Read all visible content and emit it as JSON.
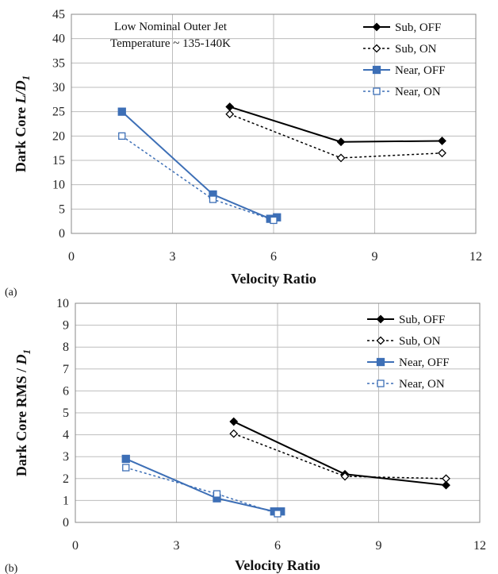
{
  "chart_data": [
    {
      "type": "line",
      "panel_label": "(a)",
      "annotation": [
        "Low Nominal Outer Jet",
        "Temperature ~ 135-140K"
      ],
      "xlabel": "Velocity Ratio",
      "ylabel_main": "Dark Core ",
      "ylabel_italic": "L/D",
      "ylabel_sub": "1",
      "xlim": [
        0,
        12
      ],
      "ylim": [
        0,
        45
      ],
      "xticks": [
        0,
        3,
        6,
        9,
        12
      ],
      "yticks": [
        0,
        5,
        10,
        15,
        20,
        25,
        30,
        35,
        40,
        45
      ],
      "grid": true,
      "legend_position": "top-right",
      "series": [
        {
          "name": "Sub, OFF",
          "color": "#000000",
          "dash": false,
          "marker": "diamond-filled",
          "x": [
            4.7,
            8.0,
            11.0
          ],
          "y": [
            26.0,
            18.8,
            19.0
          ]
        },
        {
          "name": "Sub, ON",
          "color": "#000000",
          "dash": true,
          "marker": "diamond-open",
          "x": [
            4.7,
            8.0,
            11.0
          ],
          "y": [
            24.5,
            15.5,
            16.5
          ]
        },
        {
          "name": "Near, OFF",
          "color": "#3d6fb6",
          "dash": false,
          "marker": "square-filled",
          "x": [
            1.5,
            4.2,
            5.9,
            6.1
          ],
          "y": [
            25.0,
            8.0,
            3.0,
            3.3
          ]
        },
        {
          "name": "Near, ON",
          "color": "#3d6fb6",
          "dash": true,
          "marker": "square-open",
          "x": [
            1.5,
            4.2,
            6.0
          ],
          "y": [
            20.0,
            7.0,
            2.7
          ]
        }
      ]
    },
    {
      "type": "line",
      "panel_label": "(b)",
      "xlabel": "Velocity Ratio",
      "ylabel_main": "Dark Core ",
      "ylabel_upright": "RMS / ",
      "ylabel_italic": "D",
      "ylabel_sub": "1",
      "xlim": [
        0,
        12
      ],
      "ylim": [
        0,
        10
      ],
      "xticks": [
        0,
        3,
        6,
        9,
        12
      ],
      "yticks": [
        0,
        1,
        2,
        3,
        4,
        5,
        6,
        7,
        8,
        9,
        10
      ],
      "grid": true,
      "legend_position": "top-right",
      "series": [
        {
          "name": "Sub, OFF",
          "color": "#000000",
          "dash": false,
          "marker": "diamond-filled",
          "x": [
            4.7,
            8.0,
            11.0
          ],
          "y": [
            4.6,
            2.2,
            1.7
          ]
        },
        {
          "name": "Sub, ON",
          "color": "#000000",
          "dash": true,
          "marker": "diamond-open",
          "x": [
            4.7,
            8.0,
            11.0
          ],
          "y": [
            4.05,
            2.1,
            2.0
          ]
        },
        {
          "name": "Near, OFF",
          "color": "#3d6fb6",
          "dash": false,
          "marker": "square-filled",
          "x": [
            1.5,
            4.2,
            5.9,
            6.1
          ],
          "y": [
            2.9,
            1.1,
            0.5,
            0.5
          ]
        },
        {
          "name": "Near, ON",
          "color": "#3d6fb6",
          "dash": true,
          "marker": "square-open",
          "x": [
            1.5,
            4.2,
            6.0
          ],
          "y": [
            2.5,
            1.3,
            0.4
          ]
        }
      ]
    }
  ]
}
